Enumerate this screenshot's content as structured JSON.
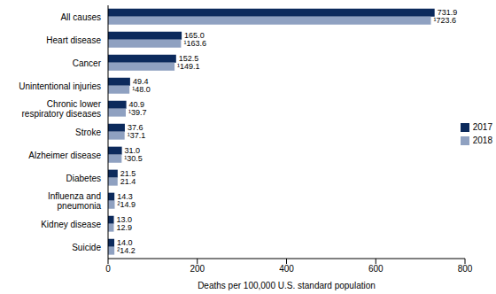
{
  "chart_data": {
    "type": "bar",
    "orientation": "horizontal",
    "data_labels": true,
    "legend": "right",
    "grid": false,
    "xlabel": "Deaths per 100,000 U.S. standard population",
    "categories": [
      "All causes",
      "Heart disease",
      "Cancer",
      "Unintentional injuries",
      "Chronic lower respiratory diseases",
      "Stroke",
      "Alzheimer disease",
      "Diabetes",
      "Influenza and pneumonia",
      "Kidney disease",
      "Suicide"
    ],
    "series": [
      {
        "name": "2017",
        "color": "#0c2a5c",
        "values": [
          731.9,
          165.0,
          152.5,
          49.4,
          40.9,
          37.6,
          31.0,
          21.5,
          14.3,
          13.0,
          14.0
        ],
        "value_labels": [
          "731.9",
          "165.0",
          "152.5",
          "49.4",
          "40.9",
          "37.6",
          "31.0",
          "21.5",
          "14.3",
          "13.0",
          "14.0"
        ]
      },
      {
        "name": "2018",
        "color": "#8fa1c1",
        "values": [
          723.6,
          163.6,
          149.1,
          48.0,
          39.7,
          37.1,
          30.5,
          21.4,
          14.9,
          12.9,
          14.2
        ],
        "value_labels": [
          "¹723.6",
          "¹163.6",
          "¹149.1",
          "¹48.0",
          "¹39.7",
          "¹37.1",
          "¹30.5",
          "21.4",
          "²14.9",
          "12.9",
          "²14.2"
        ]
      }
    ],
    "xlim": [
      0,
      800
    ],
    "xticks": [
      0,
      200,
      400,
      600,
      800
    ]
  }
}
